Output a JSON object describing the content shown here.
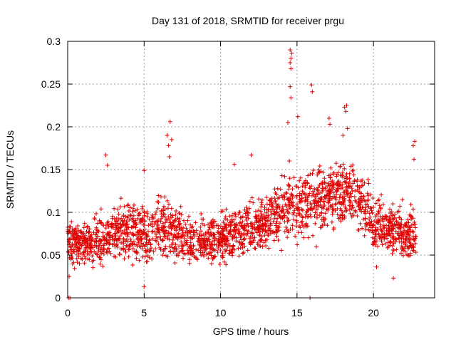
{
  "chart_data": {
    "type": "scatter",
    "title": "Day 131 of 2018, SRMTID for receiver prgu",
    "xlabel": "GPS time / hours",
    "ylabel": "SRMTID / TECUs",
    "xlim": [
      0,
      24
    ],
    "ylim": [
      0,
      0.3
    ],
    "x_ticks": [
      0,
      5,
      10,
      15,
      20
    ],
    "x_tick_labels": [
      "0",
      "5",
      "10",
      "15",
      "20"
    ],
    "y_ticks": [
      0,
      0.05,
      0.1,
      0.15,
      0.2,
      0.25,
      0.3
    ],
    "y_tick_labels": [
      "0",
      "0.05",
      "0.1",
      "0.15",
      "0.2",
      "0.25",
      "0.3"
    ],
    "grid": true,
    "marker": "+",
    "color": "#e00000",
    "trend": [
      {
        "x": 0.0,
        "y": 0.068,
        "spread": 0.022
      },
      {
        "x": 1.0,
        "y": 0.065,
        "spread": 0.022
      },
      {
        "x": 2.0,
        "y": 0.066,
        "spread": 0.024
      },
      {
        "x": 3.0,
        "y": 0.075,
        "spread": 0.026
      },
      {
        "x": 4.0,
        "y": 0.08,
        "spread": 0.027
      },
      {
        "x": 5.0,
        "y": 0.072,
        "spread": 0.028
      },
      {
        "x": 6.0,
        "y": 0.082,
        "spread": 0.03
      },
      {
        "x": 7.0,
        "y": 0.077,
        "spread": 0.027
      },
      {
        "x": 8.0,
        "y": 0.064,
        "spread": 0.022
      },
      {
        "x": 9.0,
        "y": 0.066,
        "spread": 0.022
      },
      {
        "x": 10.0,
        "y": 0.07,
        "spread": 0.024
      },
      {
        "x": 11.0,
        "y": 0.076,
        "spread": 0.025
      },
      {
        "x": 12.0,
        "y": 0.08,
        "spread": 0.025
      },
      {
        "x": 13.0,
        "y": 0.086,
        "spread": 0.026
      },
      {
        "x": 14.0,
        "y": 0.105,
        "spread": 0.03
      },
      {
        "x": 15.0,
        "y": 0.11,
        "spread": 0.032
      },
      {
        "x": 16.0,
        "y": 0.112,
        "spread": 0.032
      },
      {
        "x": 17.0,
        "y": 0.12,
        "spread": 0.033
      },
      {
        "x": 18.0,
        "y": 0.128,
        "spread": 0.034
      },
      {
        "x": 19.0,
        "y": 0.115,
        "spread": 0.03
      },
      {
        "x": 20.0,
        "y": 0.088,
        "spread": 0.026
      },
      {
        "x": 21.0,
        "y": 0.082,
        "spread": 0.026
      },
      {
        "x": 22.0,
        "y": 0.075,
        "spread": 0.025
      },
      {
        "x": 22.8,
        "y": 0.072,
        "spread": 0.025
      }
    ],
    "x_range_of_points": [
      0,
      22.8
    ],
    "approx_point_count": 2200,
    "notable_points": [
      {
        "x": 0.05,
        "y": 0.0
      },
      {
        "x": 0.15,
        "y": 0.0
      },
      {
        "x": 0.1,
        "y": 0.025
      },
      {
        "x": 2.5,
        "y": 0.167
      },
      {
        "x": 2.6,
        "y": 0.155
      },
      {
        "x": 5.0,
        "y": 0.013
      },
      {
        "x": 5.0,
        "y": 0.149
      },
      {
        "x": 6.5,
        "y": 0.19
      },
      {
        "x": 6.6,
        "y": 0.178
      },
      {
        "x": 6.7,
        "y": 0.206
      },
      {
        "x": 6.8,
        "y": 0.185
      },
      {
        "x": 6.65,
        "y": 0.165
      },
      {
        "x": 10.9,
        "y": 0.156
      },
      {
        "x": 12.0,
        "y": 0.167
      },
      {
        "x": 14.5,
        "y": 0.16
      },
      {
        "x": 14.4,
        "y": 0.205
      },
      {
        "x": 14.55,
        "y": 0.29
      },
      {
        "x": 14.65,
        "y": 0.286
      },
      {
        "x": 14.6,
        "y": 0.28
      },
      {
        "x": 14.55,
        "y": 0.275
      },
      {
        "x": 14.6,
        "y": 0.268
      },
      {
        "x": 14.55,
        "y": 0.247
      },
      {
        "x": 14.6,
        "y": 0.234
      },
      {
        "x": 15.05,
        "y": 0.212
      },
      {
        "x": 15.85,
        "y": 0.0
      },
      {
        "x": 15.95,
        "y": 0.249
      },
      {
        "x": 16.0,
        "y": 0.241
      },
      {
        "x": 17.1,
        "y": 0.21
      },
      {
        "x": 17.15,
        "y": 0.203
      },
      {
        "x": 18.1,
        "y": 0.223
      },
      {
        "x": 18.2,
        "y": 0.218
      },
      {
        "x": 18.25,
        "y": 0.225
      },
      {
        "x": 18.3,
        "y": 0.198
      },
      {
        "x": 18.0,
        "y": 0.19
      },
      {
        "x": 20.2,
        "y": 0.036
      },
      {
        "x": 21.3,
        "y": 0.023
      },
      {
        "x": 22.6,
        "y": 0.178
      },
      {
        "x": 22.7,
        "y": 0.183
      },
      {
        "x": 22.65,
        "y": 0.162
      }
    ]
  }
}
